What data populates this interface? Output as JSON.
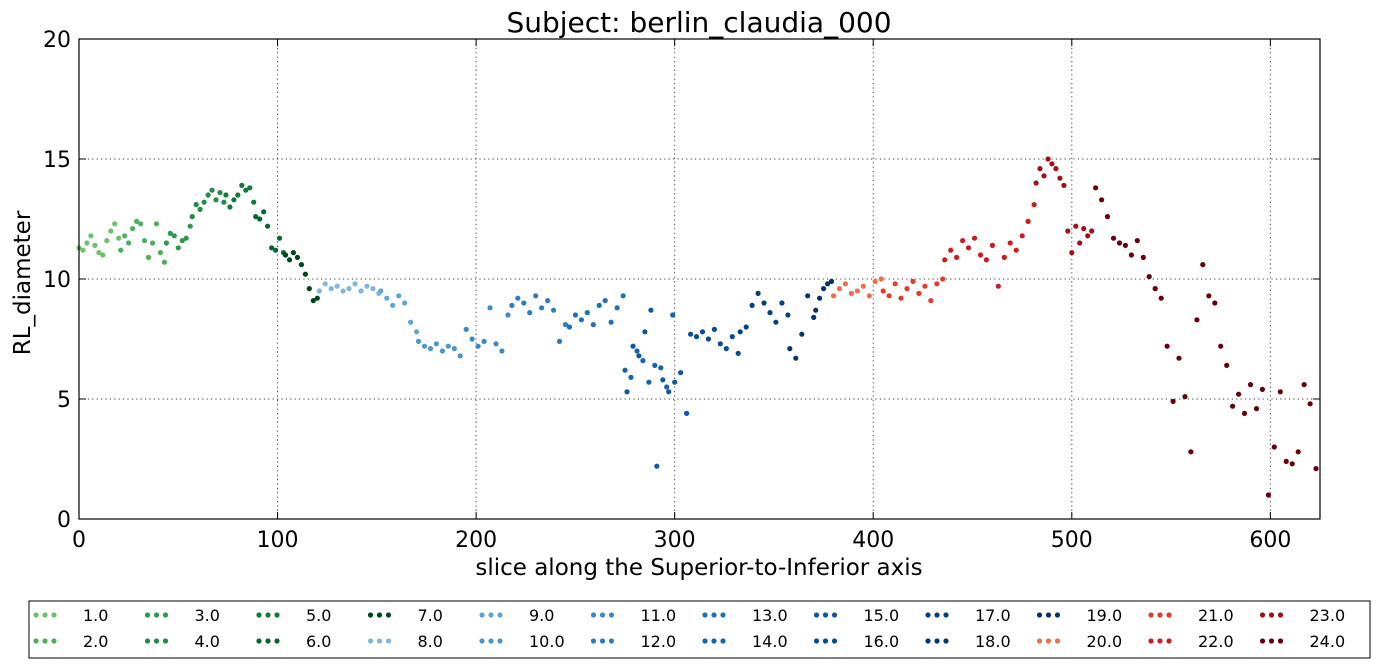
{
  "chart_data": {
    "type": "scatter",
    "title": "Subject: berlin_claudia_000",
    "xlabel": "slice along the Superior-to-Inferior axis",
    "ylabel": "RL_diameter",
    "xlim": [
      0,
      625
    ],
    "ylim": [
      0,
      20
    ],
    "x_ticks": [
      0,
      100,
      200,
      300,
      400,
      500,
      600
    ],
    "y_ticks": [
      0,
      5,
      10,
      15,
      20
    ],
    "grid": true,
    "legend_position": "bottom",
    "series": [
      {
        "name": "1.0",
        "color": "#6cc26a",
        "x": [
          0,
          2,
          4,
          6,
          8,
          10,
          12,
          14,
          16,
          18,
          20
        ],
        "y": [
          11.3,
          11.2,
          11.5,
          11.8,
          11.4,
          11.1,
          11.0,
          11.6,
          12.0,
          12.3,
          11.7
        ]
      },
      {
        "name": "2.0",
        "color": "#4daf5e",
        "x": [
          21,
          23,
          25,
          27,
          29,
          31,
          33,
          35,
          37,
          39,
          41,
          43
        ],
        "y": [
          11.2,
          11.8,
          11.5,
          12.1,
          12.4,
          12.3,
          11.6,
          10.9,
          11.5,
          12.3,
          11.1,
          10.7
        ]
      },
      {
        "name": "3.0",
        "color": "#2d9a51",
        "x": [
          44,
          46,
          48,
          50,
          52,
          54,
          56
        ],
        "y": [
          11.5,
          11.9,
          11.8,
          11.3,
          11.6,
          11.7,
          12.2
        ]
      },
      {
        "name": "4.0",
        "color": "#218b47",
        "x": [
          57,
          59,
          61,
          63,
          65,
          67,
          69,
          71,
          73
        ],
        "y": [
          12.6,
          13.1,
          12.9,
          13.2,
          13.5,
          13.7,
          13.3,
          13.6,
          13.2
        ]
      },
      {
        "name": "5.0",
        "color": "#107a3b",
        "x": [
          74,
          76,
          78,
          80,
          82,
          84,
          86,
          88
        ],
        "y": [
          13.5,
          13.0,
          13.3,
          13.5,
          13.9,
          13.7,
          13.8,
          13.2
        ]
      },
      {
        "name": "6.0",
        "color": "#046730",
        "x": [
          89,
          91,
          93,
          95,
          97,
          99,
          101,
          103
        ],
        "y": [
          12.6,
          12.5,
          12.8,
          12.2,
          11.3,
          11.2,
          11.7,
          11.1
        ]
      },
      {
        "name": "7.0",
        "color": "#00441b",
        "x": [
          104,
          106,
          108,
          110,
          112,
          114,
          116,
          118,
          120
        ],
        "y": [
          11.0,
          10.8,
          11.1,
          10.9,
          10.6,
          10.2,
          9.6,
          9.1,
          9.2
        ]
      },
      {
        "name": "8.0",
        "color": "#7fb8da",
        "x": [
          121,
          124,
          127,
          130,
          133,
          136,
          139,
          142,
          145,
          148,
          151
        ],
        "y": [
          9.5,
          9.8,
          9.6,
          9.7,
          9.5,
          9.6,
          9.8,
          9.5,
          9.7,
          9.6,
          9.4
        ]
      },
      {
        "name": "9.0",
        "color": "#60a5d2",
        "x": [
          152,
          155,
          158,
          161,
          164,
          167,
          170
        ],
        "y": [
          9.5,
          9.2,
          8.9,
          9.3,
          9.0,
          8.2,
          7.8
        ]
      },
      {
        "name": "10.0",
        "color": "#4a97c9",
        "x": [
          171,
          174,
          177,
          180,
          183,
          186,
          189,
          192
        ],
        "y": [
          7.4,
          7.2,
          7.1,
          7.3,
          7.0,
          7.2,
          7.1,
          6.8
        ]
      },
      {
        "name": "11.0",
        "color": "#3c8ac3",
        "x": [
          195,
          198,
          201,
          204,
          207,
          210,
          213,
          216
        ],
        "y": [
          7.9,
          7.5,
          7.2,
          7.4,
          8.8,
          7.3,
          7.0,
          8.5
        ]
      },
      {
        "name": "12.0",
        "color": "#2f7ebc",
        "x": [
          218,
          221,
          224,
          227,
          230,
          233,
          236,
          239,
          242,
          245
        ],
        "y": [
          8.9,
          9.2,
          9.0,
          8.6,
          9.3,
          8.8,
          9.1,
          8.7,
          7.4,
          8.1
        ]
      },
      {
        "name": "13.0",
        "color": "#2070b4",
        "x": [
          247,
          250,
          253,
          256,
          259,
          262,
          265,
          268,
          271,
          274
        ],
        "y": [
          8.0,
          8.5,
          8.3,
          8.6,
          8.1,
          8.9,
          9.1,
          8.2,
          8.8,
          9.3
        ]
      },
      {
        "name": "14.0",
        "color": "#1764ab",
        "x": [
          275,
          278,
          281,
          284,
          287,
          290,
          293,
          296,
          299
        ],
        "y": [
          6.2,
          5.9,
          7.0,
          6.6,
          5.7,
          6.4,
          6.3,
          5.5,
          8.5
        ]
      },
      {
        "name": "15.0",
        "color": "#0e58a2",
        "x": [
          276,
          279,
          282,
          285,
          288,
          291,
          294,
          297,
          300,
          303,
          306
        ],
        "y": [
          5.3,
          7.2,
          6.8,
          7.8,
          8.7,
          2.2,
          5.8,
          5.3,
          5.7,
          6.1,
          4.4
        ]
      },
      {
        "name": "16.0",
        "color": "#084c94",
        "x": [
          308,
          311,
          314,
          317,
          320,
          323,
          326,
          329,
          332
        ],
        "y": [
          7.7,
          7.6,
          7.8,
          7.5,
          7.9,
          7.3,
          7.1,
          7.6,
          6.9
        ]
      },
      {
        "name": "17.0",
        "color": "#08407f",
        "x": [
          333,
          336,
          339,
          342,
          345,
          348,
          351,
          354,
          357
        ],
        "y": [
          7.8,
          8.0,
          8.9,
          9.4,
          9.0,
          8.6,
          8.2,
          9.0,
          8.5
        ]
      },
      {
        "name": "18.0",
        "color": "#083570",
        "x": [
          358,
          361,
          364,
          367,
          370
        ],
        "y": [
          7.1,
          6.7,
          7.7,
          9.3,
          8.4
        ]
      },
      {
        "name": "19.0",
        "color": "#08306b",
        "x": [
          371,
          373,
          375,
          377,
          379
        ],
        "y": [
          8.7,
          9.2,
          9.6,
          9.8,
          9.9
        ]
      },
      {
        "name": "20.0",
        "color": "#f16c50",
        "x": [
          380,
          383,
          386,
          389,
          392,
          395,
          398,
          401,
          404
        ],
        "y": [
          9.3,
          9.6,
          9.8,
          9.4,
          9.5,
          9.7,
          9.3,
          9.9,
          10.0
        ]
      },
      {
        "name": "21.0",
        "color": "#e63a2f",
        "x": [
          405,
          408,
          411,
          414,
          417,
          420,
          423,
          426,
          429,
          432,
          435
        ],
        "y": [
          9.5,
          9.3,
          9.8,
          9.2,
          9.6,
          9.9,
          9.4,
          9.7,
          9.1,
          9.8,
          10.0
        ]
      },
      {
        "name": "22.0",
        "color": "#cb1d21",
        "x": [
          436,
          439,
          442,
          445,
          448,
          451,
          454,
          457,
          460,
          463,
          466,
          469,
          472,
          475,
          478,
          481
        ],
        "y": [
          10.8,
          11.2,
          10.9,
          11.6,
          11.3,
          11.7,
          11.0,
          10.8,
          11.4,
          9.7,
          10.9,
          11.5,
          11.2,
          11.8,
          12.4,
          13.1
        ]
      },
      {
        "name": "23.0",
        "color": "#a50f15",
        "x": [
          482,
          484,
          486,
          488,
          490,
          492,
          494,
          496,
          498,
          500,
          502,
          504,
          506,
          508,
          510
        ],
        "y": [
          14.0,
          14.6,
          14.3,
          15.0,
          14.8,
          14.6,
          14.2,
          13.9,
          12.0,
          11.1,
          12.2,
          11.5,
          12.1,
          11.8,
          12.0
        ]
      },
      {
        "name": "24.0",
        "color": "#67000d",
        "x": [
          512,
          515,
          518,
          521,
          524,
          527,
          530,
          533,
          536,
          539,
          542,
          545,
          548,
          551,
          554,
          557,
          560,
          563,
          566,
          569,
          572,
          575,
          578,
          581,
          584,
          587,
          590,
          593,
          596,
          599,
          602,
          605,
          608,
          611,
          614,
          617,
          620,
          623
        ],
        "y": [
          13.8,
          13.3,
          12.6,
          11.7,
          11.5,
          11.4,
          11.0,
          11.6,
          10.9,
          10.1,
          9.6,
          9.2,
          7.2,
          4.9,
          6.7,
          5.1,
          2.8,
          8.3,
          10.6,
          9.3,
          9.0,
          7.2,
          6.4,
          4.7,
          5.2,
          4.4,
          5.6,
          4.6,
          5.4,
          1.0,
          3.0,
          5.3,
          2.4,
          2.3,
          2.8,
          5.6,
          4.8,
          2.1
        ]
      }
    ]
  }
}
